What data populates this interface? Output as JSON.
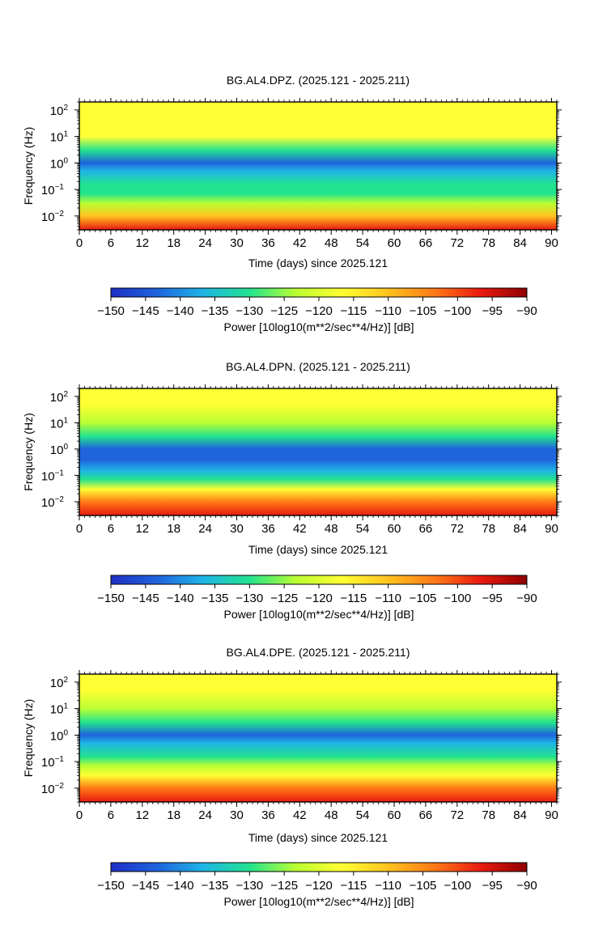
{
  "colors": {
    "colormap": [
      "#1f2fc6",
      "#1f63dd",
      "#1fb5e6",
      "#22e38e",
      "#b9ff33",
      "#ffff33",
      "#ffc21f",
      "#ff7a17",
      "#e81a10",
      "#8f0000"
    ],
    "frame": "#000000"
  },
  "chart_data": [
    {
      "type": "heatmap",
      "title": "BG.AL4.DPZ. (2025.121 - 2025.211)",
      "xlabel": "Time (days) since 2025.121",
      "ylabel": "Frequency (Hz)",
      "x_ticks": [
        "0",
        "6",
        "12",
        "18",
        "24",
        "30",
        "36",
        "42",
        "48",
        "54",
        "60",
        "66",
        "72",
        "78",
        "84",
        "90"
      ],
      "xlim": [
        0,
        91
      ],
      "y_scale": "log",
      "ylim": [
        0.003,
        200
      ],
      "y_ticks": [
        {
          "base": "10",
          "exp": "2",
          "value": 100
        },
        {
          "base": "10",
          "exp": "1",
          "value": 10
        },
        {
          "base": "10",
          "exp": "0",
          "value": 1
        },
        {
          "base": "10",
          "exp": "−1",
          "value": 0.1
        },
        {
          "base": "10",
          "exp": "−2",
          "value": 0.01
        }
      ],
      "colorbar": {
        "label": "Power [10log10(m**2/sec**4/Hz)] [dB]",
        "ticks": [
          "−150",
          "−145",
          "−140",
          "−135",
          "−130",
          "−125",
          "−120",
          "−115",
          "−110",
          "−105",
          "−100",
          "−95",
          "−90"
        ],
        "range": [
          -150,
          -90
        ]
      },
      "freq_profile": [
        {
          "f": 200,
          "db": -116
        },
        {
          "f": 50,
          "db": -117
        },
        {
          "f": 10,
          "db": -120
        },
        {
          "f": 3,
          "db": -130
        },
        {
          "f": 1,
          "db": -143
        },
        {
          "f": 0.5,
          "db": -137
        },
        {
          "f": 0.15,
          "db": -132
        },
        {
          "f": 0.07,
          "db": -127
        },
        {
          "f": 0.03,
          "db": -121
        },
        {
          "f": 0.01,
          "db": -107
        },
        {
          "f": 0.003,
          "db": -96
        }
      ]
    },
    {
      "type": "heatmap",
      "title": "BG.AL4.DPN. (2025.121 - 2025.211)",
      "xlabel": "Time (days) since 2025.121",
      "ylabel": "Frequency (Hz)",
      "x_ticks": [
        "0",
        "6",
        "12",
        "18",
        "24",
        "30",
        "36",
        "42",
        "48",
        "54",
        "60",
        "66",
        "72",
        "78",
        "84",
        "90"
      ],
      "xlim": [
        0,
        91
      ],
      "y_scale": "log",
      "ylim": [
        0.003,
        200
      ],
      "y_ticks": [
        {
          "base": "10",
          "exp": "2",
          "value": 100
        },
        {
          "base": "10",
          "exp": "1",
          "value": 10
        },
        {
          "base": "10",
          "exp": "0",
          "value": 1
        },
        {
          "base": "10",
          "exp": "−1",
          "value": 0.1
        },
        {
          "base": "10",
          "exp": "−2",
          "value": 0.01
        }
      ],
      "colorbar": {
        "label": "Power [10log10(m**2/sec**4/Hz)] [dB]",
        "ticks": [
          "−150",
          "−145",
          "−140",
          "−135",
          "−130",
          "−125",
          "−120",
          "−115",
          "−110",
          "−105",
          "−100",
          "−95",
          "−90"
        ],
        "range": [
          -150,
          -90
        ]
      },
      "freq_profile": [
        {
          "f": 200,
          "db": -116
        },
        {
          "f": 50,
          "db": -117
        },
        {
          "f": 10,
          "db": -121
        },
        {
          "f": 3,
          "db": -133
        },
        {
          "f": 1,
          "db": -146
        },
        {
          "f": 0.4,
          "db": -143
        },
        {
          "f": 0.15,
          "db": -134
        },
        {
          "f": 0.07,
          "db": -127
        },
        {
          "f": 0.03,
          "db": -120
        },
        {
          "f": 0.01,
          "db": -106
        },
        {
          "f": 0.003,
          "db": -96
        }
      ]
    },
    {
      "type": "heatmap",
      "title": "BG.AL4.DPE. (2025.121 - 2025.211)",
      "xlabel": "Time (days) since 2025.121",
      "ylabel": "Frequency (Hz)",
      "x_ticks": [
        "0",
        "6",
        "12",
        "18",
        "24",
        "30",
        "36",
        "42",
        "48",
        "54",
        "60",
        "66",
        "72",
        "78",
        "84",
        "90"
      ],
      "xlim": [
        0,
        91
      ],
      "y_scale": "log",
      "ylim": [
        0.003,
        200
      ],
      "y_ticks": [
        {
          "base": "10",
          "exp": "2",
          "value": 100
        },
        {
          "base": "10",
          "exp": "1",
          "value": 10
        },
        {
          "base": "10",
          "exp": "0",
          "value": 1
        },
        {
          "base": "10",
          "exp": "−1",
          "value": 0.1
        },
        {
          "base": "10",
          "exp": "−2",
          "value": 0.01
        }
      ],
      "colorbar": {
        "label": "Power [10log10(m**2/sec**4/Hz)] [dB]",
        "ticks": [
          "−150",
          "−145",
          "−140",
          "−135",
          "−130",
          "−125",
          "−120",
          "−115",
          "−110",
          "−105",
          "−100",
          "−95",
          "−90"
        ],
        "range": [
          -150,
          -90
        ]
      },
      "freq_profile": [
        {
          "f": 200,
          "db": -116
        },
        {
          "f": 50,
          "db": -117
        },
        {
          "f": 10,
          "db": -121
        },
        {
          "f": 3,
          "db": -130
        },
        {
          "f": 1,
          "db": -141
        },
        {
          "f": 0.5,
          "db": -136
        },
        {
          "f": 0.15,
          "db": -131
        },
        {
          "f": 0.07,
          "db": -126
        },
        {
          "f": 0.03,
          "db": -120
        },
        {
          "f": 0.01,
          "db": -106
        },
        {
          "f": 0.003,
          "db": -96
        }
      ]
    }
  ]
}
